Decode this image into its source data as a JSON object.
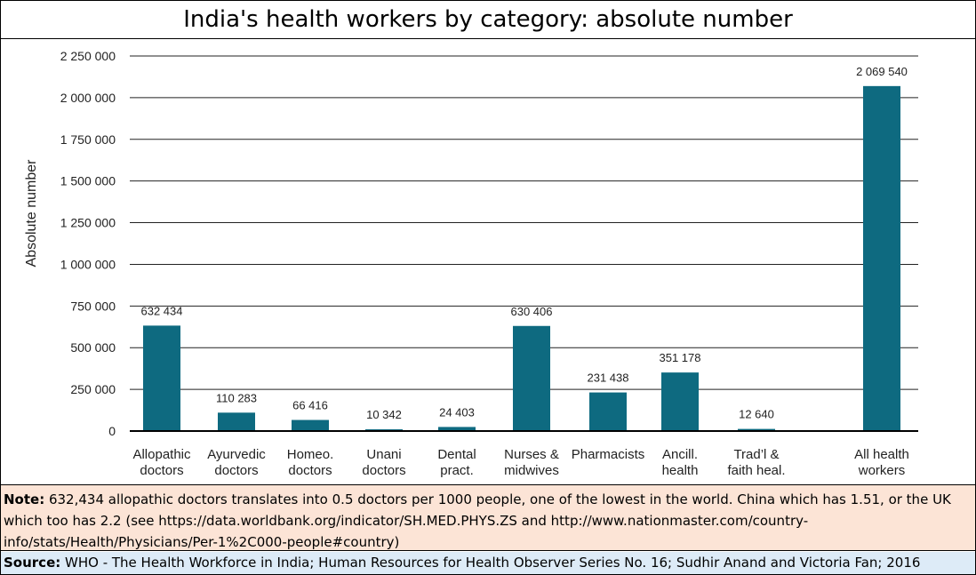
{
  "chart_data": {
    "type": "bar",
    "title": "India's health workers by category: absolute number",
    "ylabel": "Absolute number",
    "xlabel": "",
    "ylim": [
      0,
      2250000
    ],
    "yticks": [
      {
        "value": 0,
        "label": "0"
      },
      {
        "value": 250000,
        "label": "250 000"
      },
      {
        "value": 500000,
        "label": "500 000"
      },
      {
        "value": 750000,
        "label": "750 000"
      },
      {
        "value": 1000000,
        "label": "1 000 000"
      },
      {
        "value": 1250000,
        "label": "1 250 000"
      },
      {
        "value": 1500000,
        "label": "1 500 000"
      },
      {
        "value": 1750000,
        "label": "1 750 000"
      },
      {
        "value": 2000000,
        "label": "2 000 000"
      },
      {
        "value": 2250000,
        "label": "2 250 000"
      }
    ],
    "categories": [
      [
        "Allopathic",
        "doctors"
      ],
      [
        "Ayurvedic",
        "doctors"
      ],
      [
        "Homeo.",
        "doctors"
      ],
      [
        "Unani",
        "doctors"
      ],
      [
        "Dental",
        "pract."
      ],
      [
        "Nurses &",
        "midwives"
      ],
      [
        "Pharmacists"
      ],
      [
        "Ancill.",
        "health"
      ],
      [
        "Trad’l &",
        "faith heal."
      ],
      [
        "All health",
        "workers"
      ]
    ],
    "values": [
      632434,
      110283,
      66416,
      10342,
      24403,
      630406,
      231438,
      351178,
      12640,
      2069540
    ],
    "data_labels": [
      "632 434",
      "110 283",
      "66 416",
      "10 342",
      "24 403",
      "630 406",
      "231 438",
      "351 178",
      "12 640",
      "2 069 540"
    ],
    "bar_color": "#0e6a80",
    "grid": true,
    "legend": "none"
  },
  "note": {
    "label": "Note:",
    "text": " 632,434 allopathic doctors translates into 0.5 doctors per 1000 people, one of the lowest in the world.  China which has 1.51, or the UK which too has 2.2 (see https://data.worldbank.org/indicator/SH.MED.PHYS.ZS and http://www.nationmaster.com/country-info/stats/Health/Physicians/Per-1%2C000-people#country)",
    "background": "#fce4d6"
  },
  "source": {
    "label": "Source:",
    "text": " WHO - The Health Workforce in India; Human Resources for Health Observer Series No. 16; Sudhir Anand and Victoria Fan; 2016",
    "background": "#ddebf7"
  }
}
